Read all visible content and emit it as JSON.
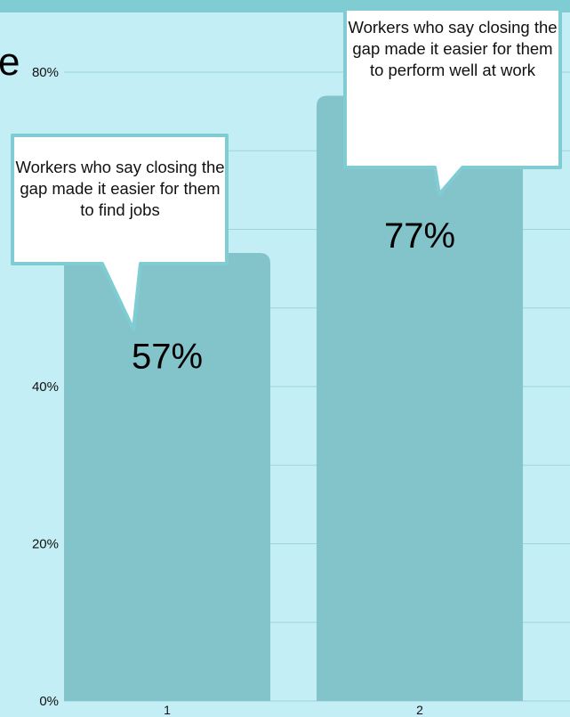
{
  "title_fragment": "e",
  "chart_data": {
    "type": "bar",
    "categories": [
      "1",
      "2"
    ],
    "values": [
      57,
      77
    ],
    "value_labels": [
      "57%",
      "77%"
    ],
    "ylim": [
      0,
      80
    ],
    "y_ticks": [
      {
        "value": 0,
        "label": "0%"
      },
      {
        "value": 20,
        "label": "20%"
      },
      {
        "value": 40,
        "label": "40%"
      },
      {
        "value": 80,
        "label": "80%"
      }
    ],
    "gridline_values": [
      0,
      10,
      20,
      30,
      40,
      50,
      60,
      70,
      80
    ],
    "annotations": [
      {
        "category": "1",
        "text": "Workers who say closing the gap made it easier for them to find jobs"
      },
      {
        "category": "2",
        "text": "Workers who say closing the gap made it easier for them to perform well at work"
      }
    ],
    "xlabel": "",
    "ylabel": "",
    "grid": true,
    "legend": "none",
    "colors": {
      "bar": "#82c4ca",
      "background": "#c3eef5",
      "top_band": "#7fcdd3",
      "gridline": "#9fd4da",
      "callout_fill": "#ffffff",
      "callout_border": "#7fcdd3"
    }
  }
}
